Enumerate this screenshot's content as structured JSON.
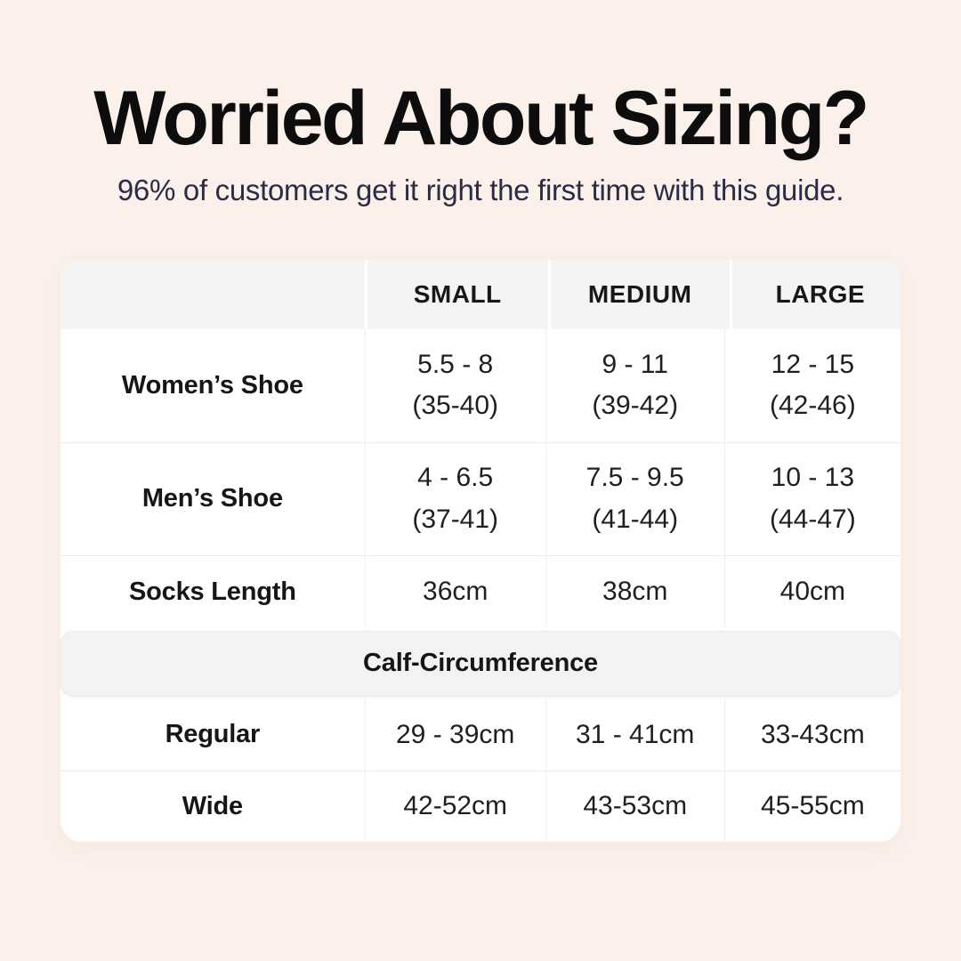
{
  "page": {
    "title": "Worried About Sizing?",
    "subtitle": "96% of customers get it right the first time with this guide.",
    "background_color": "#fcf1ea",
    "title_color": "#0d0d0d",
    "subtitle_color": "#2b2b47"
  },
  "colors": {
    "table_background": "#ffffff",
    "header_cell_background": "#f4f4f5",
    "section_band_background": "#f3f3f4",
    "divider": "#ededee",
    "table_text": "#1f1f22"
  },
  "chart_data": {
    "type": "table",
    "title": "Worried About Sizing?",
    "subtitle": "96% of customers get it right the first time with this guide.",
    "columns": [
      "SMALL",
      "MEDIUM",
      "LARGE"
    ],
    "shoe_rows": [
      {
        "label": "Women’s Shoe",
        "cells": [
          {
            "us": "5.5 - 8",
            "eu": "(35-40)"
          },
          {
            "us": "9 - 11",
            "eu": "(39-42)"
          },
          {
            "us": "12 - 15",
            "eu": "(42-46)"
          }
        ]
      },
      {
        "label": "Men’s Shoe",
        "cells": [
          {
            "us": "4 - 6.5",
            "eu": "(37-41)"
          },
          {
            "us": "7.5 - 9.5",
            "eu": "(41-44)"
          },
          {
            "us": "10 - 13",
            "eu": "(44-47)"
          }
        ]
      }
    ],
    "socks_row": {
      "label": "Socks Length",
      "cells": [
        "36cm",
        "38cm",
        "40cm"
      ]
    },
    "calf_section": {
      "header": "Calf-Circumference",
      "rows": [
        {
          "label": "Regular",
          "cells": [
            "29 - 39cm",
            "31 - 41cm",
            "33-43cm"
          ]
        },
        {
          "label": "Wide",
          "cells": [
            "42-52cm",
            "43-53cm",
            "45-55cm"
          ]
        }
      ]
    }
  }
}
